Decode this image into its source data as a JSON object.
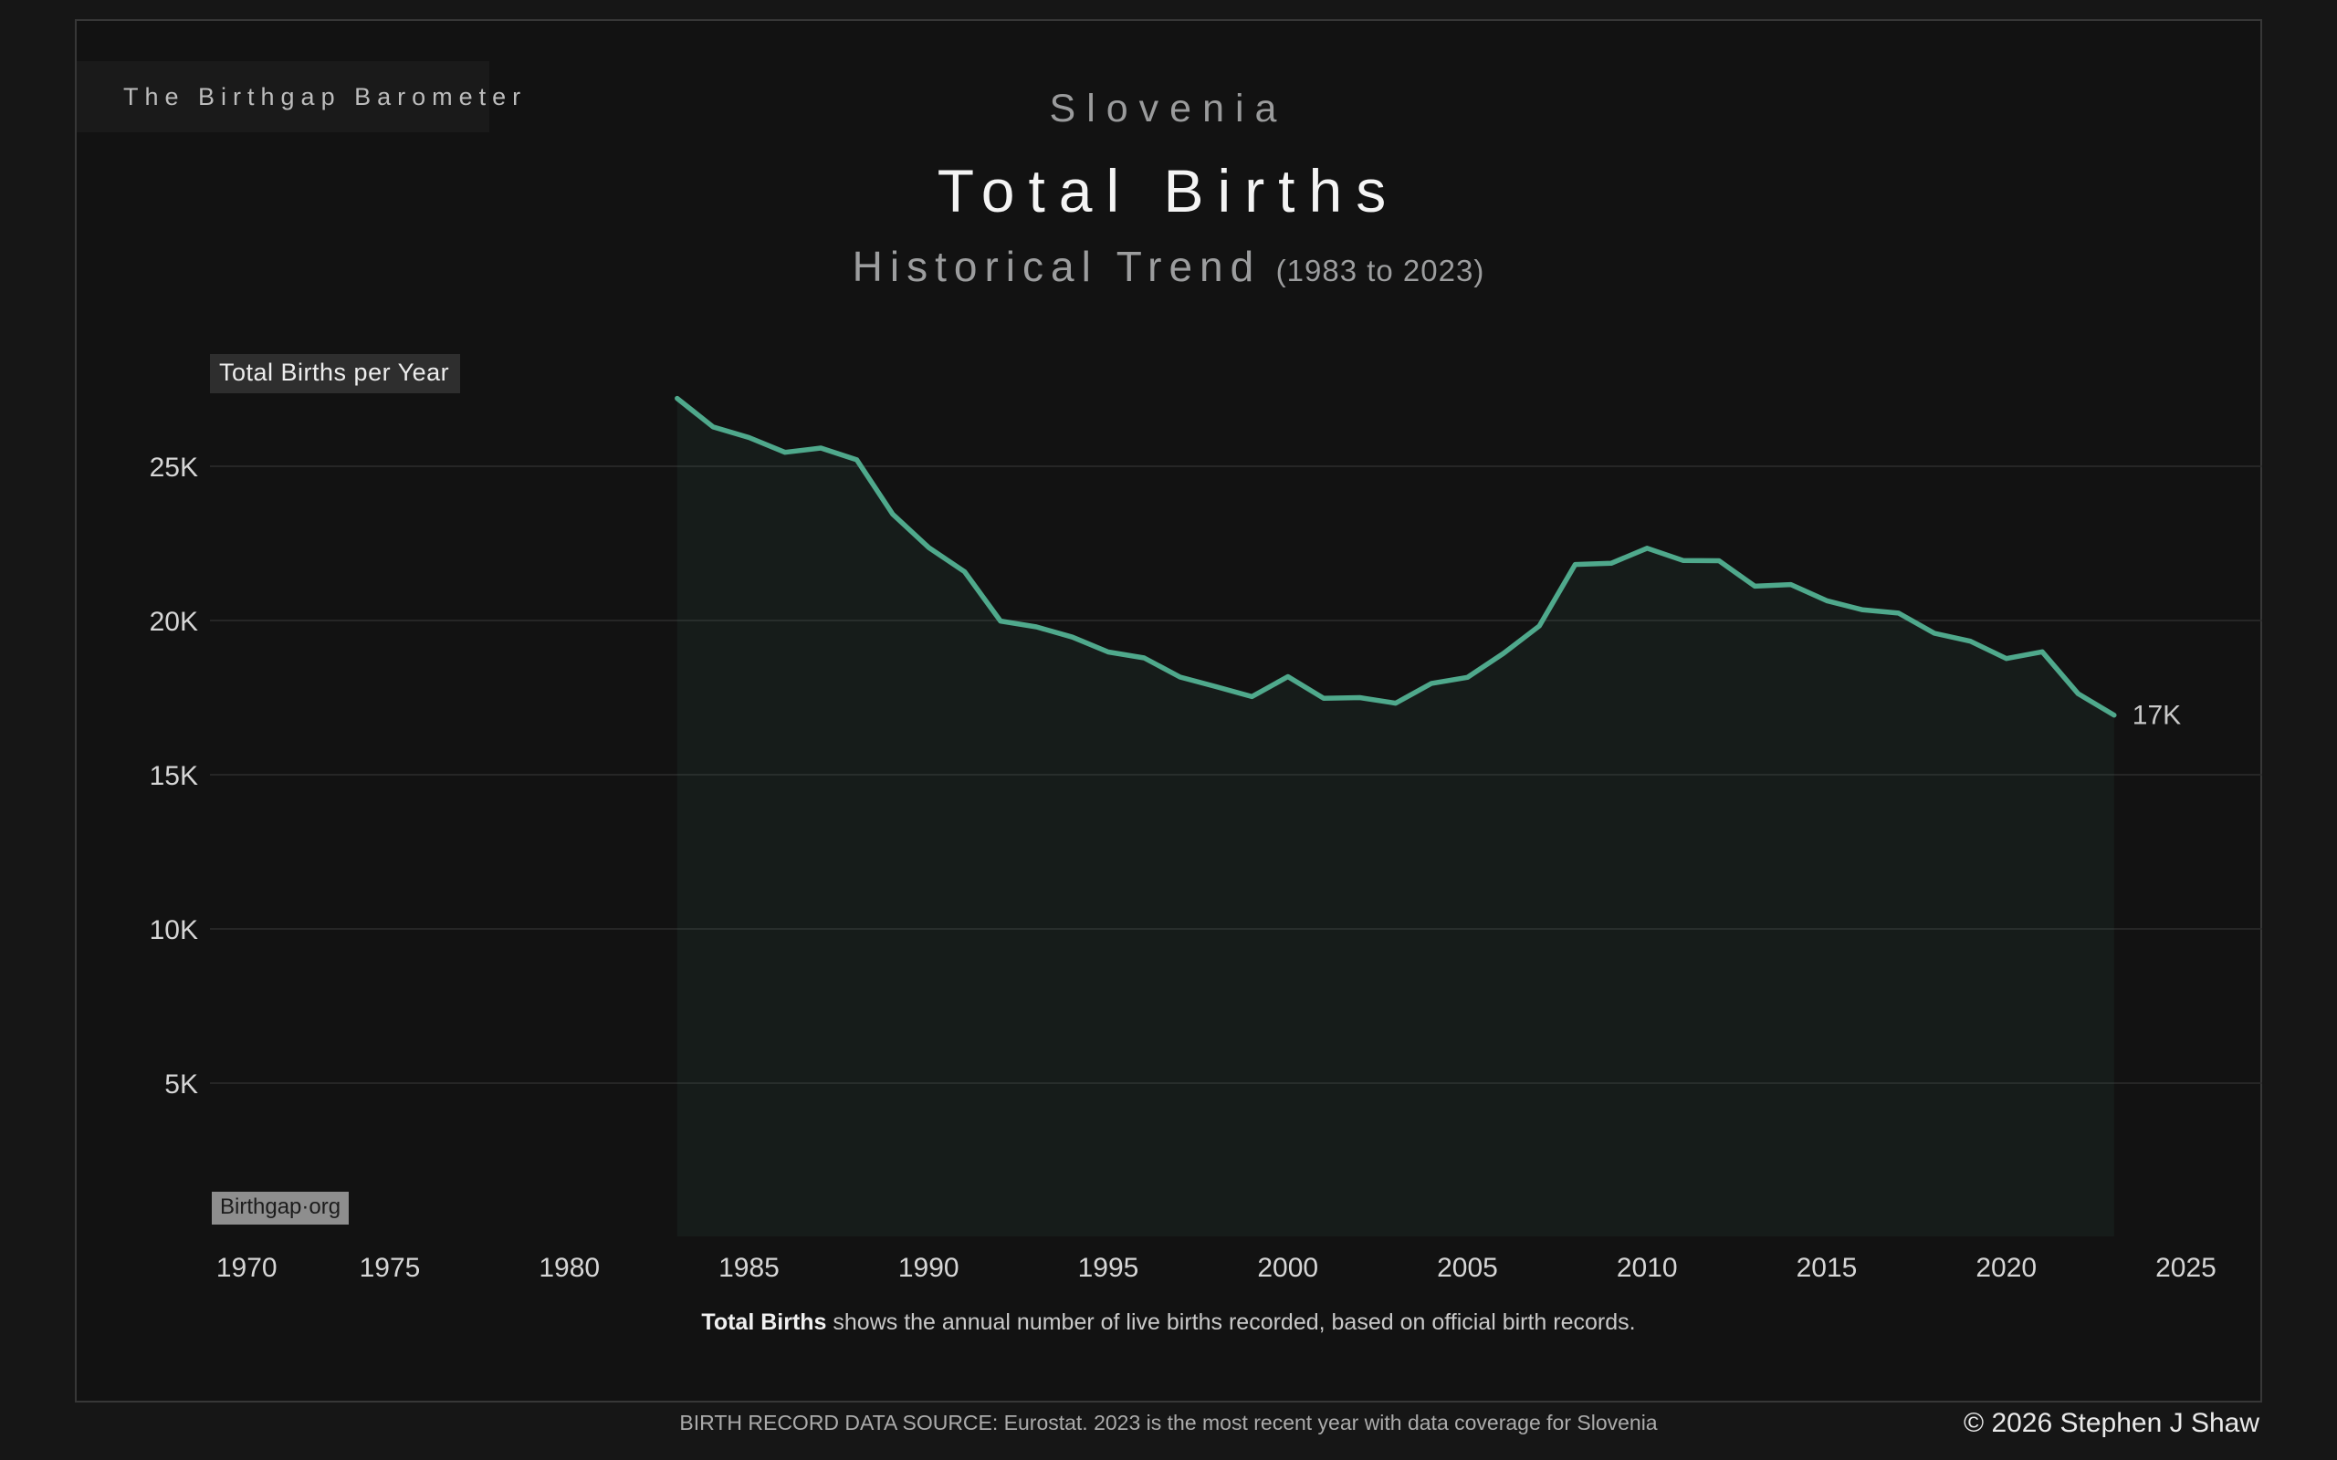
{
  "brand": {
    "label": "The Birthgap Barometer"
  },
  "header": {
    "country": "Slovenia",
    "title": "Total Births",
    "subtitle": "Historical Trend",
    "subtitle_range": "(1983 to 2023)"
  },
  "chart": {
    "series_label": "Total Births per Year",
    "watermark": "Birthgap·org",
    "end_label": "17K"
  },
  "chart_data": {
    "type": "area",
    "title": "Slovenia Total Births Historical Trend (1983 to 2023)",
    "ylabel": "Total Births per Year",
    "xlabel": "",
    "x": [
      1983,
      1984,
      1985,
      1986,
      1987,
      1988,
      1989,
      1990,
      1991,
      1992,
      1993,
      1994,
      1995,
      1996,
      1997,
      1998,
      1999,
      2000,
      2001,
      2002,
      2003,
      2004,
      2005,
      2006,
      2007,
      2008,
      2009,
      2010,
      2011,
      2012,
      2013,
      2014,
      2015,
      2016,
      2017,
      2018,
      2019,
      2020,
      2021,
      2022,
      2023
    ],
    "values": [
      27200,
      26274,
      25933,
      25452,
      25592,
      25209,
      23447,
      22368,
      21583,
      19982,
      19793,
      19463,
      18980,
      18788,
      18165,
      17856,
      17533,
      18180,
      17477,
      17501,
      17321,
      17961,
      18157,
      18932,
      19823,
      21817,
      21856,
      22343,
      21947,
      21938,
      21111,
      21165,
      20641,
      20345,
      20241,
      19585,
      19328,
      18767,
      18984,
      17627,
      16933
    ],
    "x_ticks": [
      1970,
      1975,
      1980,
      1985,
      1990,
      1995,
      2000,
      2005,
      2010,
      2015,
      2020,
      2025
    ],
    "y_ticks": [
      5000,
      10000,
      15000,
      20000,
      25000
    ],
    "y_tick_labels": [
      "5K",
      "10K",
      "15K",
      "20K",
      "25K"
    ],
    "xlim": [
      1970,
      2027
    ],
    "ylim": [
      0,
      27500
    ],
    "grid": "horizontal",
    "legend": "none",
    "line_color": "#4fa98c",
    "fill_color": "rgba(79,169,140,0.07)",
    "grid_color": "#2c2c2c",
    "last_point_annotation": "17K"
  },
  "caption": {
    "bold": "Total Births",
    "rest": " shows the annual number of live births recorded, based on official birth records."
  },
  "footer": {
    "source": "BIRTH RECORD DATA SOURCE: Eurostat. 2023 is the most recent year with data coverage for Slovenia",
    "copyright": "© 2026 Stephen J Shaw"
  }
}
